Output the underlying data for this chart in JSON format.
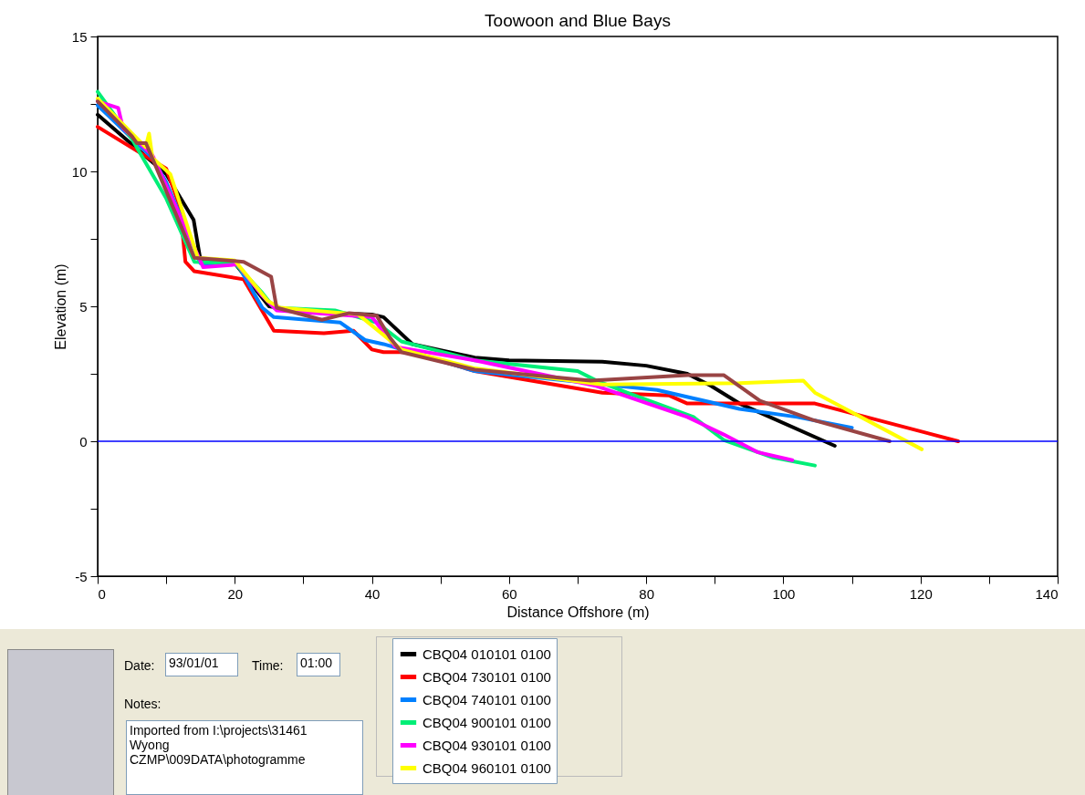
{
  "chart_data": {
    "type": "line",
    "title": "Toowoon and Blue Bays",
    "xlabel": "Distance Offshore (m)",
    "ylabel": "Elevation (m)",
    "xlim": [
      0,
      140
    ],
    "xticks": [
      0,
      {
        "value": 10,
        "label": null
      },
      20,
      {
        "value": 30,
        "label": null
      },
      40,
      {
        "value": 50,
        "label": null
      },
      60,
      {
        "value": 70,
        "label": null
      },
      80,
      {
        "value": 90,
        "label": null
      },
      100,
      {
        "value": 110,
        "label": null
      },
      120,
      {
        "value": 130,
        "label": null
      },
      140
    ],
    "ylim": [
      -5,
      15
    ],
    "yticks": [
      -5,
      {
        "value": -2.5,
        "label": null
      },
      0,
      {
        "value": 2.5,
        "label": null
      },
      5,
      {
        "value": 7.5,
        "label": null
      },
      10,
      {
        "value": 12.5,
        "label": null
      },
      15
    ],
    "grid": false,
    "legend": "bottom",
    "line_style": "solid",
    "marker": "none",
    "ref_lines": [
      {
        "axis": "y",
        "value": 0,
        "color": "#0000ff"
      }
    ],
    "series": [
      {
        "name": "CBQ04 010101 0100",
        "color": "#000000",
        "x": [
          0,
          10,
          14,
          15,
          20,
          25,
          30,
          40,
          41.7,
          45.9,
          55,
          60,
          73.6,
          80,
          86,
          89.4,
          93.6,
          107.5
        ],
        "values": [
          12.1,
          9.9,
          8.2,
          6.7,
          6.6,
          5,
          4.8,
          4.7,
          4.6,
          3.6,
          3.1,
          3,
          2.95,
          2.8,
          2.5,
          2.06,
          1.4,
          -0.17
        ]
      },
      {
        "name": "CBQ04 730101 0100",
        "color": "#ff0000",
        "x": [
          0,
          10,
          12,
          12.8,
          14.1,
          21.3,
          25.7,
          33,
          37.3,
          40,
          41.7,
          45.9,
          55,
          73.6,
          83.3,
          86,
          104.6,
          125.5
        ],
        "values": [
          11.65,
          10.1,
          8.7,
          6.65,
          6.3,
          6,
          4.1,
          4,
          4.1,
          3.4,
          3.3,
          3.3,
          2.6,
          1.8,
          1.7,
          1.4,
          1.4,
          0
        ]
      },
      {
        "name": "CBQ04 740101 0100",
        "color": "#0080ff",
        "x": [
          0,
          8,
          10,
          14,
          15,
          20.4,
          24,
          25.7,
          35.4,
          39,
          41.7,
          55,
          81.6,
          93.6,
          102,
          110
        ],
        "values": [
          12.45,
          10.5,
          9.6,
          7.2,
          6.6,
          6.55,
          4.95,
          4.6,
          4.4,
          3.75,
          3.6,
          2.6,
          1.9,
          1.2,
          0.9,
          0.5
        ]
      },
      {
        "name": "CBQ04 900101 0100",
        "color": "#00ee77",
        "x": [
          0,
          5,
          10,
          14.1,
          20,
          24,
          25.7,
          34.6,
          40.7,
          44.3,
          55,
          70,
          72.7,
          77.2,
          86.9,
          91.3,
          94,
          98.5,
          104.6
        ],
        "values": [
          12.95,
          11.2,
          9,
          6.65,
          6.6,
          5.5,
          4.95,
          4.85,
          4.4,
          3.7,
          3,
          2.6,
          2.25,
          1.8,
          0.9,
          0.05,
          -0.2,
          -0.6,
          -0.9
        ]
      },
      {
        "name": "CBQ04 930101 0100",
        "color": "#ff00ff",
        "x": [
          0,
          3,
          3.7,
          8,
          15.4,
          20.4,
          24,
          26.1,
          40,
          43.4,
          55,
          72.7,
          86,
          91.3,
          96.2,
          101.3
        ],
        "values": [
          12.6,
          12.35,
          11.6,
          10.6,
          6.45,
          6.55,
          5.4,
          4.85,
          4.6,
          3.5,
          3,
          2.05,
          0.9,
          0.25,
          -0.4,
          -0.7
        ]
      },
      {
        "name": "CBQ04 960101 0100",
        "color": "#ffff00",
        "x": [
          0,
          7,
          7.5,
          8,
          10.6,
          14.6,
          20,
          24.8,
          26.6,
          38,
          44.3,
          55,
          73.6,
          93.6,
          102.9,
          104.6,
          120.2
        ],
        "values": [
          12.7,
          10.9,
          11.4,
          10.5,
          9.9,
          6.8,
          6.7,
          5.2,
          4.95,
          4.7,
          3.4,
          2.7,
          2.1,
          2.15,
          2.25,
          1.8,
          -0.3
        ]
      },
      {
        "color": "#994444",
        "x": [
          0,
          5,
          5.7,
          7.05,
          14.1,
          21.3,
          25.3,
          26.1,
          32.7,
          36.7,
          40.7,
          42.6,
          44.3,
          55,
          71.9,
          86,
          91.3,
          96.6,
          104.2,
          115.5
        ],
        "values": [
          12.6,
          11.3,
          11.05,
          11.05,
          6.8,
          6.65,
          6.1,
          4.95,
          4.5,
          4.75,
          4.65,
          3.85,
          3.3,
          2.65,
          2.25,
          2.45,
          2.45,
          1.5,
          0.8,
          0
        ]
      }
    ],
    "annotations": [
      "Date:",
      "93/01/01",
      "Time:",
      "01:00",
      "Notes:",
      "Imported from I:\\projects\\31461\nWyong\nCZMP\\009DATA\\photogramme"
    ]
  }
}
